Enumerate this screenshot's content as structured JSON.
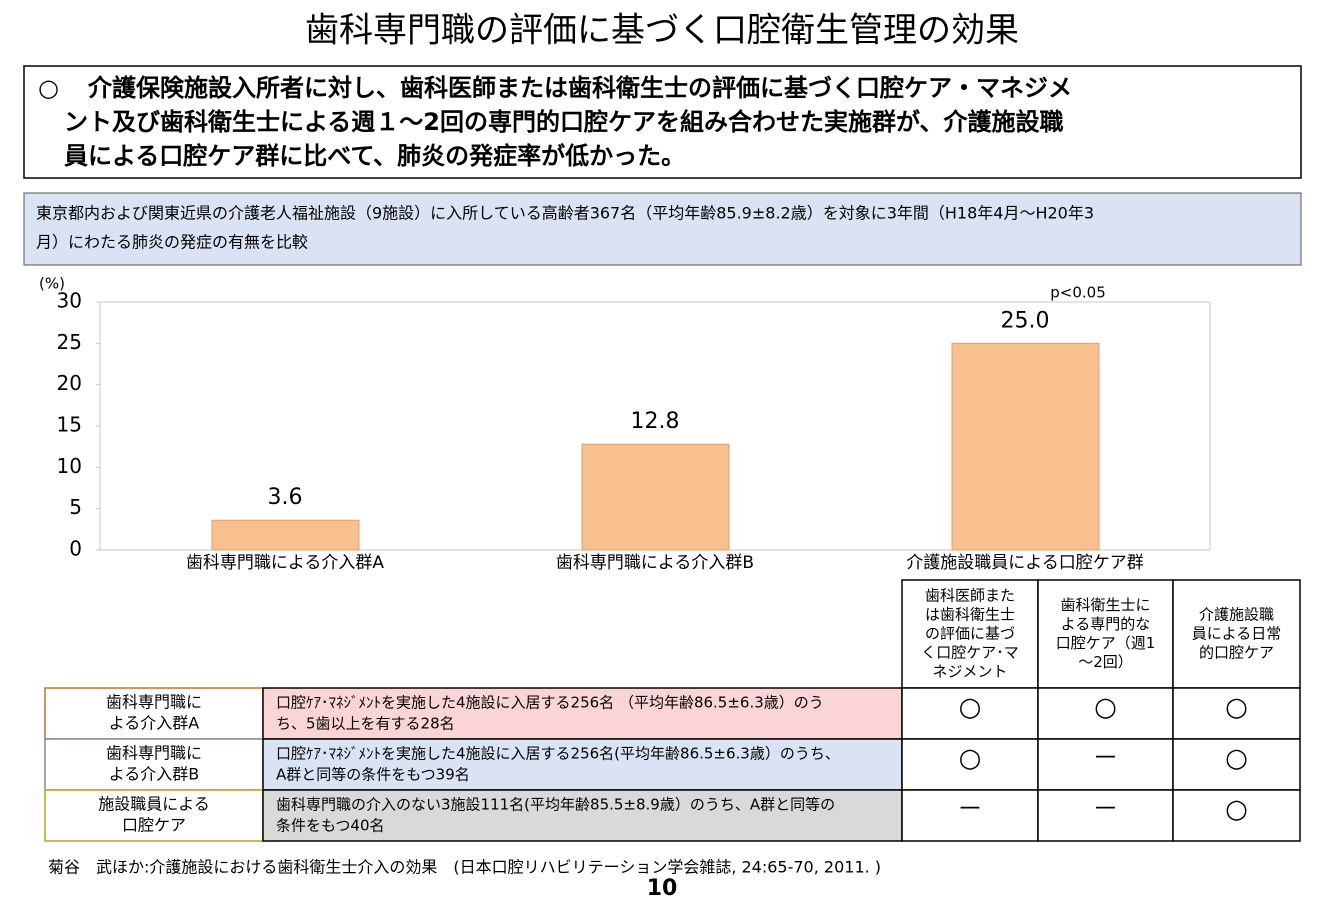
{
  "header": {
    "title": "歯科専門職の評価に基づく口腔衛生管理の効果"
  },
  "summary": {
    "bullet": "○",
    "lines": [
      "介護保険施設入所者に対し、歯科医師または歯科衛生士の評価に基づく口腔ケア・マネジメ",
      "ント及び歯科衛生士による週１～2回の専門的口腔ケアを組み合わせた実施群が、介護施設職",
      "員による口腔ケア群に比べて、肺炎の発症率が低かった。"
    ]
  },
  "note": {
    "lines": [
      "東京都内および関東近県の介護老人福祉施設（9施設）に入所している高齢者367名（平均年齢85.9±8.2歳）を対象に3年間（H18年4月～H20年3",
      "月）にわたる肺炎の発症の有無を比較"
    ]
  },
  "chart_data": {
    "type": "bar",
    "y_label": "(%)",
    "annotation": "p<0.05",
    "categories": [
      "歯科専門職による介入群A",
      "歯科専門職による介入群B",
      "介護施設職員による口腔ケア群"
    ],
    "values": [
      3.6,
      12.8,
      25.0
    ],
    "value_labels": [
      "3.6",
      "12.8",
      "25.0"
    ],
    "color": "#f8c08f",
    "ylim": [
      0,
      30
    ],
    "yticks": [
      0,
      5,
      10,
      15,
      20,
      25,
      30
    ]
  },
  "table": {
    "columns": [
      [
        "歯科医師また",
        "は歯科衛生士",
        "の評価に基づ",
        "く口腔ケア･マ",
        "ネジメント"
      ],
      [
        "歯科衛生士に",
        "よる専門的な",
        "口腔ケア（週1",
        "～2回）"
      ],
      [
        "介護施設職",
        "員による日常",
        "的口腔ケア"
      ]
    ],
    "rows": [
      {
        "group": [
          "歯科専門職に",
          "よる介入群A"
        ],
        "description": [
          "口腔ｹｱ･ﾏﾈｼﾞﾒﾝﾄを実施した4施設に入居する256名 （平均年齢86.5±6.3歳）のう",
          "ち、5歯以上を有する28名"
        ],
        "fill": "#fbd5d5",
        "cells": [
          "○",
          "○",
          "○"
        ]
      },
      {
        "group": [
          "歯科専門職に",
          "よる介入群B"
        ],
        "description": [
          "口腔ｹｱ･ﾏﾈｼﾞﾒﾝﾄを実施した4施設に入居する256名(平均年齢86.5±6.3歳）のうち、",
          "A群と同等の条件をもつ39名"
        ],
        "fill": "#dae3f3",
        "cells": [
          "○",
          "－",
          "○"
        ]
      },
      {
        "group": [
          "施設職員による",
          "口腔ケア"
        ],
        "description": [
          "歯科専門職の介入のない3施設111名(平均年齢85.5±8.9歳）のうち、A群と同等の",
          "条件をもつ40名"
        ],
        "fill": "#d9d9d9",
        "cells": [
          "－",
          "－",
          "○"
        ]
      }
    ]
  },
  "citation": "菊谷　武ほか:介護施設における歯科衛生士介入の効果　(日本口腔リハビリテーション学会雑誌, 24:65-70, 2011. )",
  "page_number": "10"
}
